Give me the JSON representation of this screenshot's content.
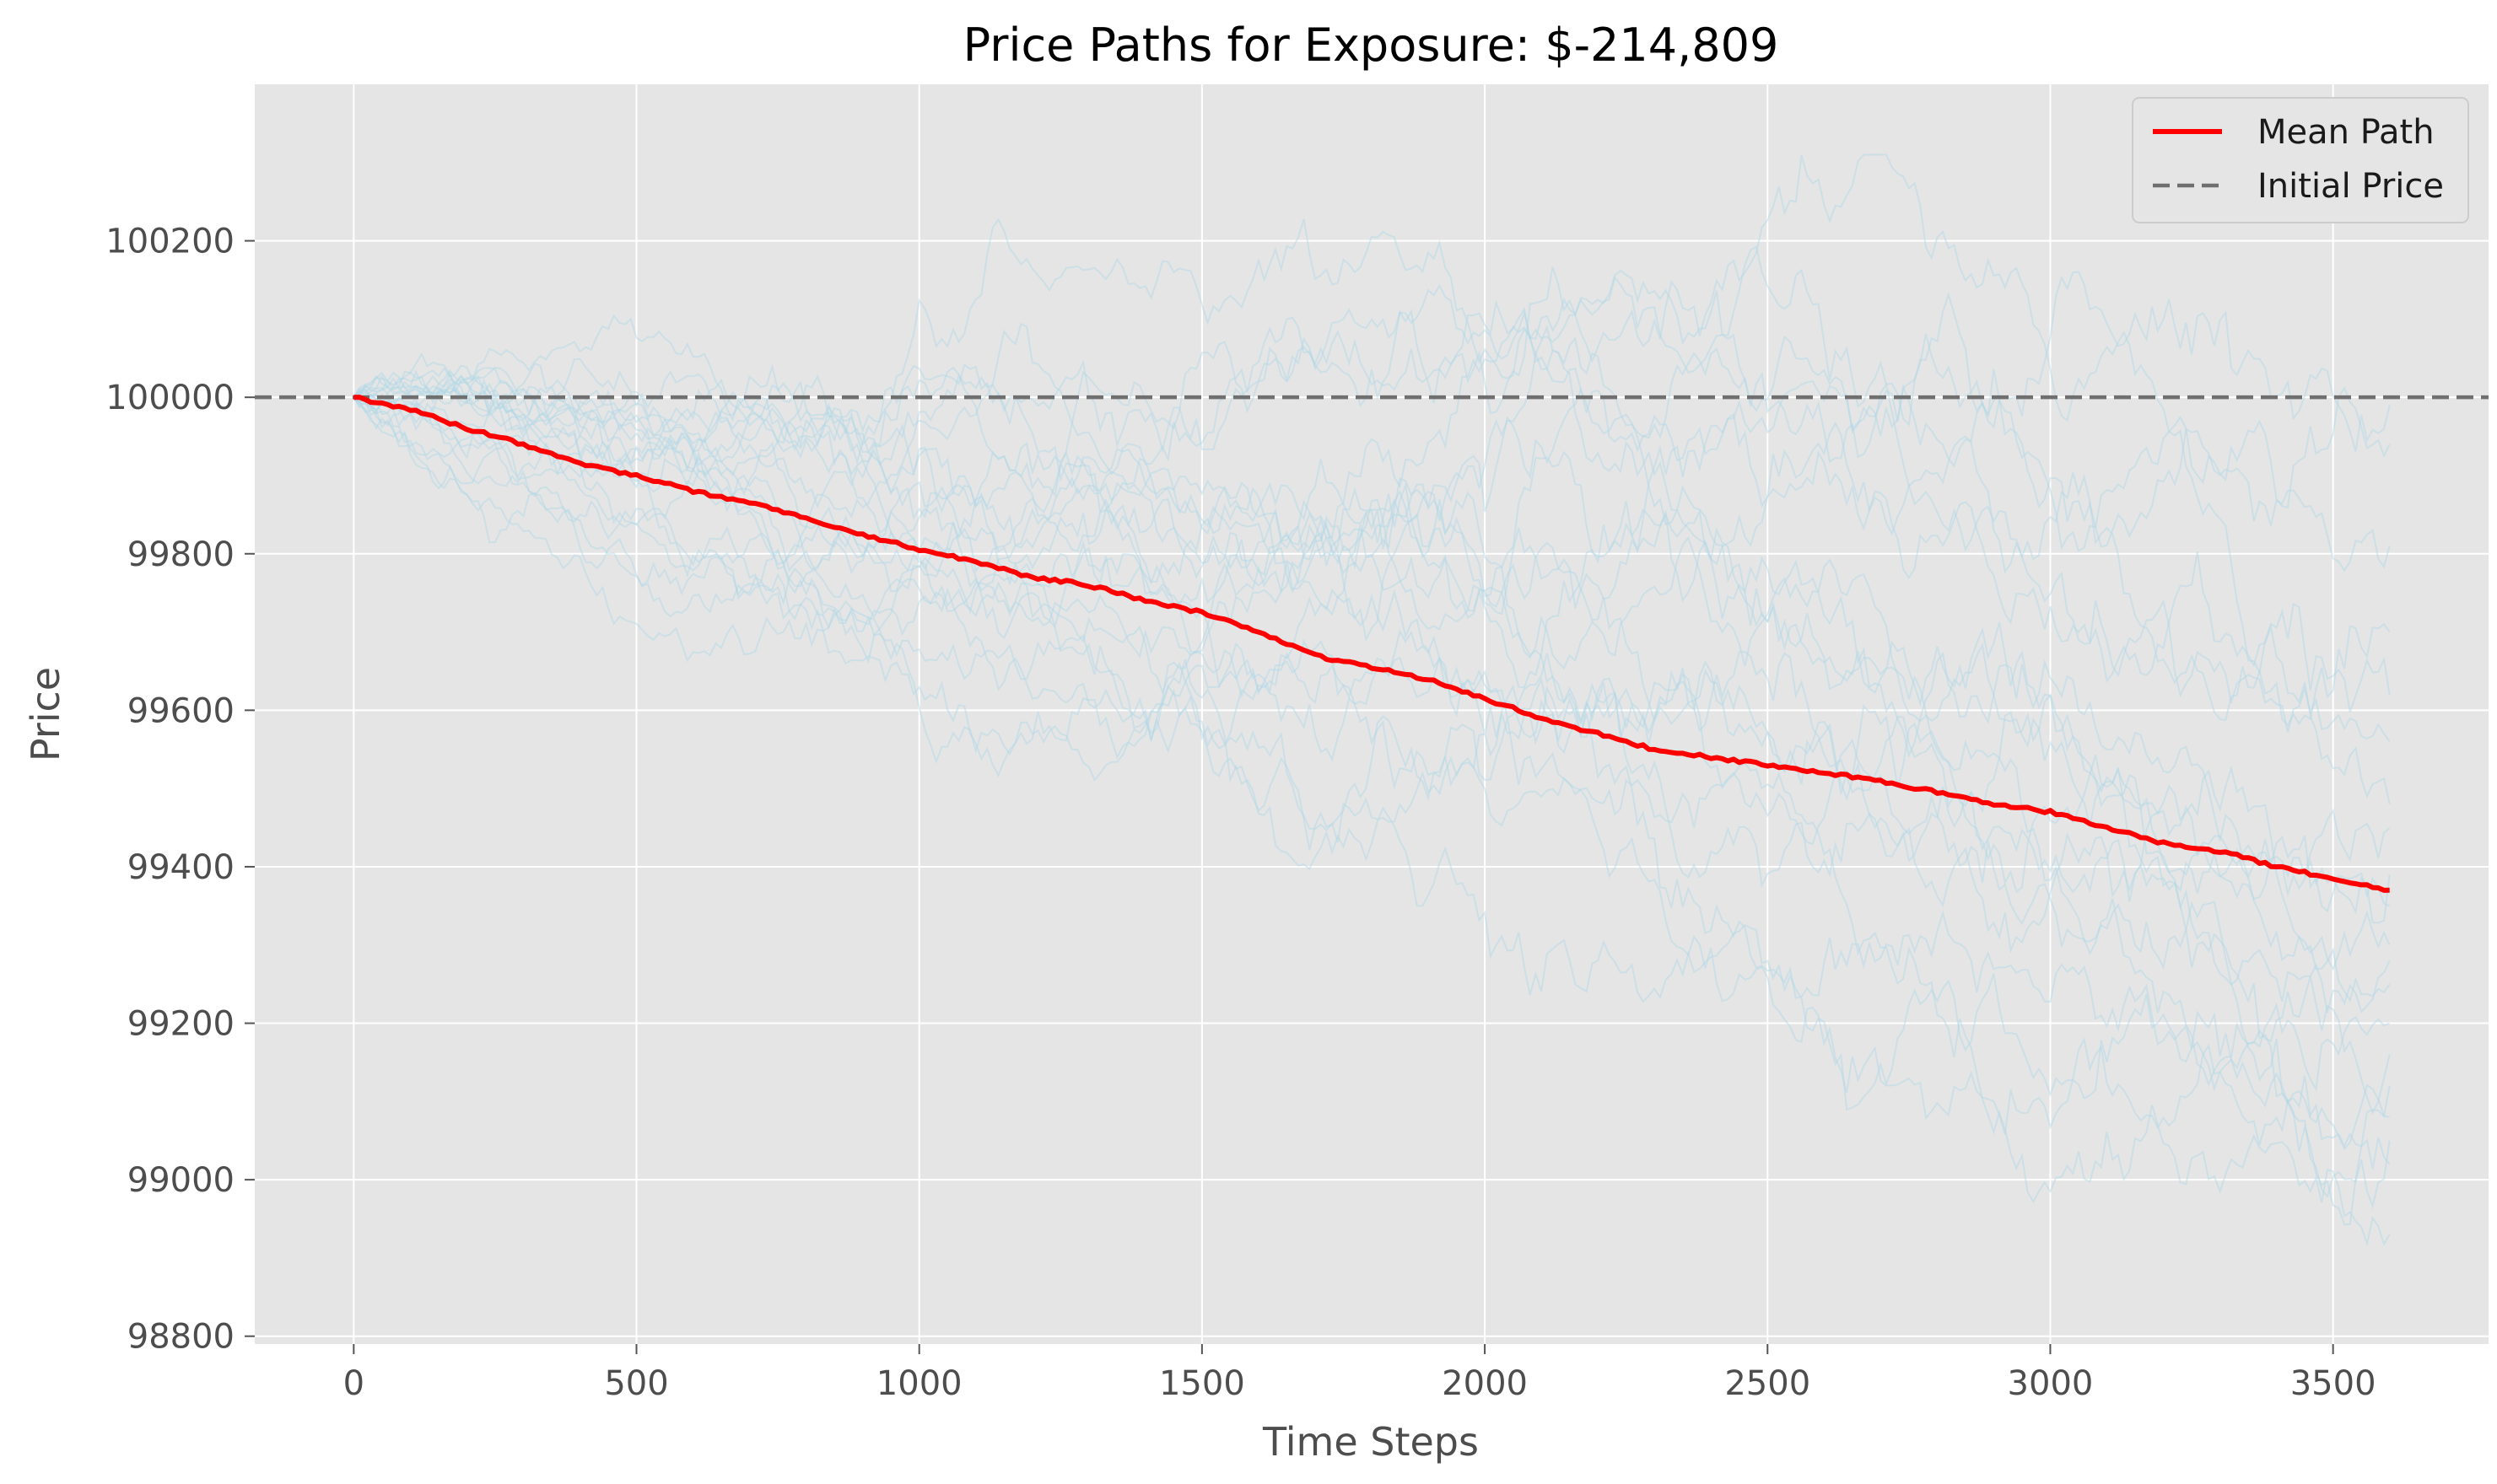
{
  "chart_data": {
    "type": "line",
    "title": "Price Paths for Exposure: $-214,809",
    "xlabel": "Time Steps",
    "ylabel": "Price",
    "xlim": [
      -175,
      3775
    ],
    "ylim": [
      98790,
      100400
    ],
    "xticks": [
      0,
      500,
      1000,
      1500,
      2000,
      2500,
      3000,
      3500
    ],
    "yticks": [
      98800,
      99000,
      99200,
      99400,
      99600,
      99800,
      100000,
      100200
    ],
    "grid": true,
    "legend_position": "top-right",
    "colors": {
      "background": "#e5e5e5",
      "grid": "#ffffff",
      "mean": "#ff0000",
      "initial": "#6f6f6f",
      "paths": "#add8e6"
    },
    "legend": [
      {
        "label": "Mean Path",
        "style": "solid",
        "color": "#ff0000"
      },
      {
        "label": "Initial Price",
        "style": "dashed",
        "color": "#6f6f6f"
      }
    ],
    "initial_price": 100000,
    "mean_path": {
      "name": "Mean Path",
      "x": [
        0,
        100,
        200,
        300,
        400,
        500,
        600,
        700,
        800,
        900,
        1000,
        1100,
        1200,
        1300,
        1400,
        1500,
        1600,
        1700,
        1800,
        1900,
        2000,
        2100,
        2200,
        2300,
        2400,
        2500,
        2600,
        2700,
        2800,
        2900,
        3000,
        3100,
        3200,
        3300,
        3400,
        3500,
        3600
      ],
      "y": [
        100000,
        99985,
        99960,
        99940,
        99915,
        99900,
        99880,
        99865,
        99845,
        99825,
        99805,
        99790,
        99770,
        99760,
        99740,
        99725,
        99700,
        99670,
        99655,
        99640,
        99615,
        99590,
        99570,
        99550,
        99540,
        99530,
        99520,
        99510,
        99495,
        99480,
        99470,
        99450,
        99430,
        99420,
        99400,
        99385,
        99370
      ]
    },
    "simulated_paths": {
      "count": 20,
      "x_start": 0,
      "x_end": 3600,
      "end_values": [
        99990,
        99940,
        99810,
        99700,
        99620,
        99560,
        99480,
        99450,
        99390,
        99350,
        99300,
        99280,
        99250,
        99200,
        99160,
        99120,
        99080,
        99050,
        99020,
        98930
      ],
      "path_min": 98860,
      "path_max": 100310
    }
  }
}
